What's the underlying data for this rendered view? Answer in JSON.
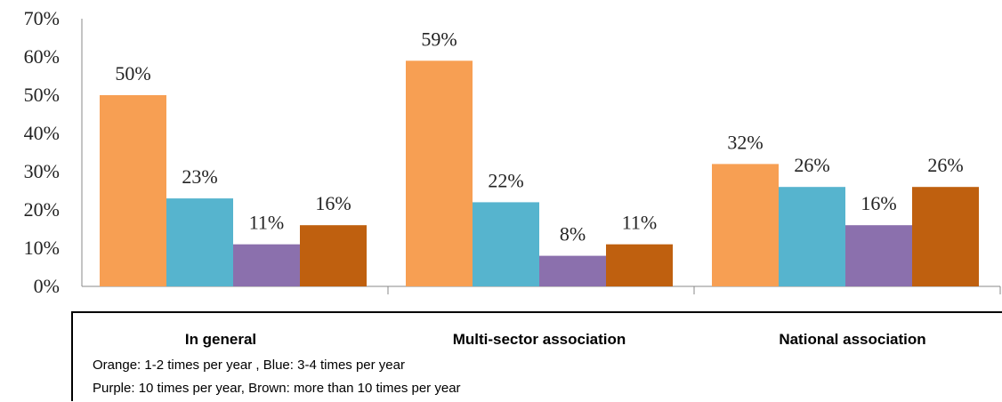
{
  "chart_data": {
    "type": "bar",
    "categories": [
      "In general",
      "Multi-sector association",
      "National association"
    ],
    "series": [
      {
        "color": "#F79F53",
        "values": [
          50,
          59,
          32
        ]
      },
      {
        "color": "#56B4CE",
        "values": [
          23,
          22,
          26
        ]
      },
      {
        "color": "#8B70AD",
        "values": [
          11,
          8,
          16
        ]
      },
      {
        "color": "#BF600F",
        "values": [
          16,
          11,
          26
        ]
      }
    ],
    "data_labels": [
      [
        "50%",
        "59%",
        "32%"
      ],
      [
        "23%",
        "22%",
        "26%"
      ],
      [
        "11%",
        "8%",
        "16%"
      ],
      [
        "16%",
        "11%",
        "26%"
      ]
    ],
    "yticks": [
      "0%",
      "10%",
      "20%",
      "30%",
      "40%",
      "50%",
      "60%",
      "70%"
    ],
    "ylim": [
      0,
      70
    ],
    "grid": false,
    "legend_notes": [
      "Orange: 1-2 times per year , Blue: 3-4 times per year",
      "Purple: 10 times per year, Brown: more than 10 times per year"
    ]
  }
}
